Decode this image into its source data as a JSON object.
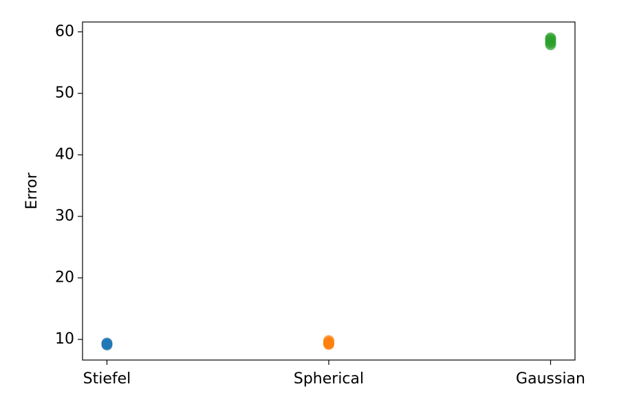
{
  "chart_data": {
    "type": "strip",
    "y_label": "Error",
    "categories": [
      "Stiefel",
      "Spherical",
      "Gaussian"
    ],
    "values": [
      [
        9.1,
        9.2,
        9.3,
        9.4
      ],
      [
        9.2,
        9.3,
        9.4,
        9.6,
        9.8
      ],
      [
        57.9,
        58.2,
        58.5,
        58.8,
        59.0
      ]
    ],
    "colors": [
      "#1f77b4",
      "#ff7f0e",
      "#2ca02c"
    ],
    "xlim": [
      -0.11,
      2.11
    ],
    "ylim": [
      6.65,
      61.6
    ],
    "yticks": [
      10,
      20,
      30,
      40,
      50,
      60
    ]
  }
}
